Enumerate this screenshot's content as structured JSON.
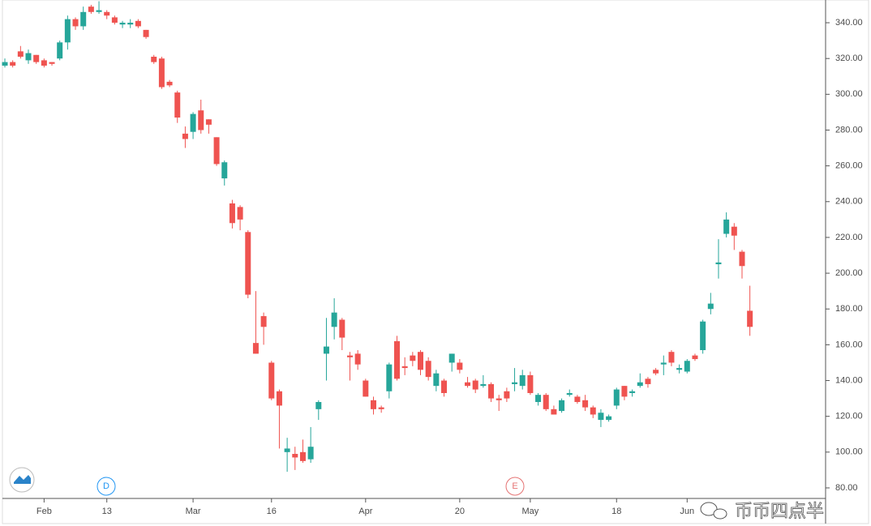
{
  "chart_data": {
    "type": "candlestick",
    "categories": [
      null,
      null,
      null,
      null,
      null,
      "Feb",
      null,
      null,
      null,
      null,
      null,
      null,
      null,
      "13",
      null,
      null,
      null,
      null,
      null,
      null,
      null,
      null,
      null,
      null,
      "Mar",
      null,
      null,
      null,
      null,
      null,
      null,
      null,
      null,
      null,
      "16",
      null,
      null,
      null,
      null,
      null,
      null,
      null,
      null,
      null,
      null,
      null,
      "Apr",
      null,
      null,
      null,
      null,
      null,
      null,
      null,
      null,
      null,
      null,
      null,
      "20",
      null,
      null,
      null,
      null,
      null,
      null,
      null,
      null,
      "May",
      null,
      null,
      null,
      null,
      null,
      null,
      null,
      null,
      null,
      null,
      "18",
      null,
      null,
      null,
      null,
      null,
      null,
      null,
      null,
      "Jun",
      null,
      null,
      null,
      null,
      null,
      null,
      null,
      null
    ],
    "open": [
      316,
      318,
      324,
      319,
      322,
      319,
      318,
      320,
      329,
      342,
      338,
      349,
      346,
      346,
      343,
      339,
      339,
      341,
      336,
      321,
      320,
      307,
      301,
      278,
      279,
      291,
      286,
      276,
      253,
      239,
      237,
      223,
      161,
      176,
      150,
      134,
      100,
      99,
      100,
      96,
      124,
      155,
      170,
      174,
      154,
      155,
      140,
      129,
      125,
      134,
      162,
      148,
      154,
      156,
      151,
      137,
      140,
      150,
      150,
      139,
      140,
      137,
      138,
      130,
      134,
      138,
      137,
      143,
      128,
      132,
      124,
      123,
      132,
      131,
      129,
      125,
      118,
      118,
      126,
      137,
      133,
      137,
      141,
      146,
      149,
      156,
      146,
      145,
      154,
      157,
      180,
      205,
      222,
      226,
      212,
      179
    ],
    "high": [
      320,
      319,
      327,
      325,
      322,
      320,
      318,
      330,
      344,
      343,
      349,
      350,
      352,
      347,
      344,
      341,
      342,
      342,
      336,
      322,
      321,
      308,
      302,
      282,
      290,
      297,
      286,
      276,
      263,
      241,
      238,
      224,
      190,
      178,
      151,
      135,
      108,
      103,
      107,
      114,
      129,
      175,
      186,
      175,
      156,
      157,
      141,
      131,
      126,
      150,
      165,
      153,
      156,
      157,
      153,
      146,
      141,
      155,
      152,
      142,
      141,
      143,
      139,
      132,
      136,
      147,
      146,
      145,
      133,
      133,
      126,
      130,
      135,
      132,
      132,
      126,
      124,
      121,
      136,
      137,
      135,
      144,
      142,
      147,
      154,
      157,
      149,
      152,
      155,
      174,
      189,
      219,
      234,
      228,
      213,
      193
    ],
    "low": [
      315,
      315,
      320,
      317,
      317,
      315,
      316,
      319,
      325,
      336,
      336,
      345,
      345,
      342,
      339,
      337,
      337,
      337,
      331,
      317,
      303,
      304,
      284,
      270,
      275,
      278,
      278,
      260,
      249,
      225,
      224,
      186,
      155,
      160,
      129,
      102,
      89,
      90,
      94,
      94,
      118,
      140,
      163,
      157,
      140,
      146,
      131,
      121,
      122,
      130,
      140,
      143,
      148,
      143,
      140,
      134,
      131,
      145,
      144,
      136,
      133,
      136,
      128,
      123,
      128,
      134,
      135,
      132,
      126,
      123,
      121,
      122,
      131,
      127,
      123,
      119,
      114,
      117,
      124,
      129,
      131,
      136,
      136,
      143,
      143,
      148,
      144,
      144,
      151,
      155,
      177,
      197,
      220,
      213,
      197,
      165
    ],
    "close": [
      318,
      316,
      321,
      323,
      318,
      316,
      317,
      329,
      342,
      338,
      346,
      346,
      347,
      344,
      340,
      340,
      340,
      338,
      332,
      318,
      304,
      305,
      287,
      275,
      289,
      280,
      283,
      261,
      262,
      228,
      230,
      188,
      155,
      170,
      130,
      126,
      102,
      97,
      95,
      103,
      128,
      159,
      178,
      164,
      153,
      149,
      131,
      124,
      124,
      149,
      141,
      147,
      151,
      146,
      142,
      144,
      133,
      155,
      146,
      137,
      135,
      138,
      130,
      129,
      130,
      139,
      143,
      133,
      132,
      124,
      121,
      129,
      133,
      128,
      125,
      121,
      122,
      120,
      135,
      131,
      134,
      139,
      138,
      144,
      150,
      150,
      147,
      151,
      152,
      173,
      183,
      206,
      230,
      221,
      204,
      170
    ],
    "up_color": "#26a69a",
    "down_color": "#ef5350",
    "ylim": [
      74.1,
      352.7
    ],
    "yticks": [
      {
        "value": 80,
        "label": "80.00"
      },
      {
        "value": 100,
        "label": "100.00"
      },
      {
        "value": 120,
        "label": "120.00"
      },
      {
        "value": 140,
        "label": "140.00"
      },
      {
        "value": 160,
        "label": "160.00"
      },
      {
        "value": 180,
        "label": "180.00"
      },
      {
        "value": 200,
        "label": "200.00"
      },
      {
        "value": 220,
        "label": "220.00"
      },
      {
        "value": 240,
        "label": "240.00"
      },
      {
        "value": 260,
        "label": "260.00"
      },
      {
        "value": 280,
        "label": "280.00"
      },
      {
        "value": 300,
        "label": "300.00"
      },
      {
        "value": 320,
        "label": "320.00"
      },
      {
        "value": 340,
        "label": "340.00"
      }
    ],
    "markers": [
      "D",
      "E"
    ]
  },
  "watermark": "币币四点半"
}
